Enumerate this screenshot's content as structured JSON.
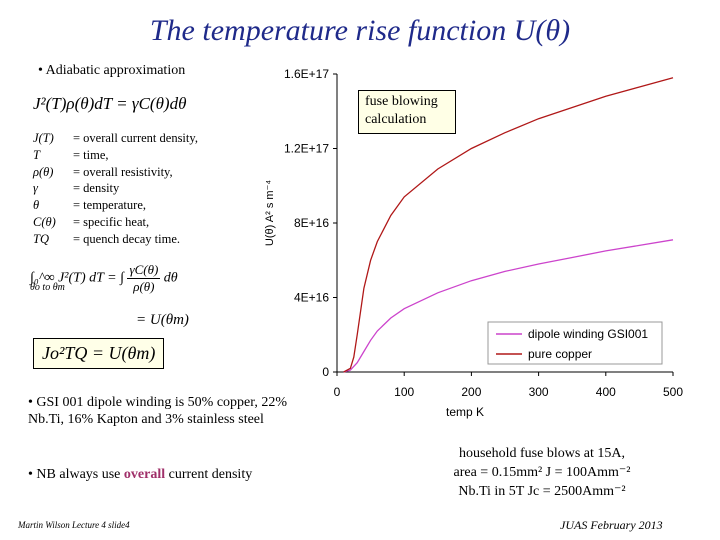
{
  "slide": {
    "title": "The temperature rise function U(θ)",
    "bullet_adiabatic": "Adiabatic approximation",
    "eq_main": "J²(T)ρ(θ)dT = γC(θ)dθ",
    "definitions": [
      {
        "sym": "J(T)",
        "desc": "= overall current density,"
      },
      {
        "sym": "T",
        "desc": "= time,"
      },
      {
        "sym": "ρ(θ)",
        "desc": "= overall resistivity,"
      },
      {
        "sym": "γ",
        "desc": "= density"
      },
      {
        "sym": "θ",
        "desc": "= temperature,"
      },
      {
        "sym": "C(θ)",
        "desc": "= specific heat,"
      },
      {
        "sym": "TQ",
        "desc": "= quench decay time."
      }
    ],
    "eq_integral_lhs": "∫₀^∞ J²(T) dT",
    "eq_integral_rhs_num": "γC(θ)",
    "eq_integral_rhs_den": "ρ(θ)",
    "eq_integral_limits": "θo to θm",
    "eq_integral_result": "= U(θm)",
    "eq_box": "Jo²TQ = U(θm)",
    "bullet_gsi": "GSI 001 dipole winding is 50% copper, 22% Nb.Ti, 16% Kapton and 3% stainless steel",
    "bullet_nb_pre": "NB always use ",
    "bullet_nb_em": "overall",
    "bullet_nb_post": " current density",
    "fuse_box": "fuse blowing calculation",
    "note_line1": "household fuse blows at 15A,",
    "note_line2": "area = 0.15mm² J = 100Amm⁻²",
    "note_line3": "Nb.Ti in 5T Jc = 2500Amm⁻²",
    "footer_left": "Martin Wilson Lecture 4 slide4",
    "footer_right": "JUAS February 2013",
    "accent_title": "#1f2a8a",
    "accent_overall": "#a0306a"
  },
  "chart_data": {
    "type": "line",
    "xlabel": "temp K",
    "ylabel": "U(θ)  A² s m⁻⁴",
    "xlim": [
      0,
      500
    ],
    "ylim": [
      0,
      1.6e+17
    ],
    "x_ticks": [
      "0",
      "100",
      "200",
      "300",
      "400",
      "500"
    ],
    "y_ticks": [
      "0",
      "4E+16",
      "8E+16",
      "1.2E+17",
      "1.6E+17"
    ],
    "grid": false,
    "legend": "bottom-right",
    "series": [
      {
        "name": "dipole winding GSI001",
        "color": "#cc44cc",
        "x": [
          10,
          20,
          30,
          40,
          50,
          60,
          80,
          100,
          150,
          200,
          250,
          300,
          350,
          400,
          450,
          500
        ],
        "y": [
          0,
          1000000000000000.0,
          5000000000000000.0,
          1.1e+16,
          1.7e+16,
          2.2e+16,
          2.9e+16,
          3.4e+16,
          4.25e+16,
          4.9e+16,
          5.4e+16,
          5.8e+16,
          6.15e+16,
          6.5e+16,
          6.8e+16,
          7.1e+16
        ]
      },
      {
        "name": "pure copper",
        "color": "#b01818",
        "x": [
          10,
          20,
          25,
          30,
          40,
          50,
          60,
          80,
          100,
          150,
          200,
          250,
          300,
          350,
          400,
          450,
          500
        ],
        "y": [
          0,
          2000000000000000.0,
          8000000000000000.0,
          2e+16,
          4.5e+16,
          6e+16,
          7e+16,
          8.4e+16,
          9.4e+16,
          1.09e+17,
          1.2e+17,
          1.285e+17,
          1.36e+17,
          1.42e+17,
          1.48e+17,
          1.53e+17,
          1.58e+17
        ]
      }
    ]
  }
}
